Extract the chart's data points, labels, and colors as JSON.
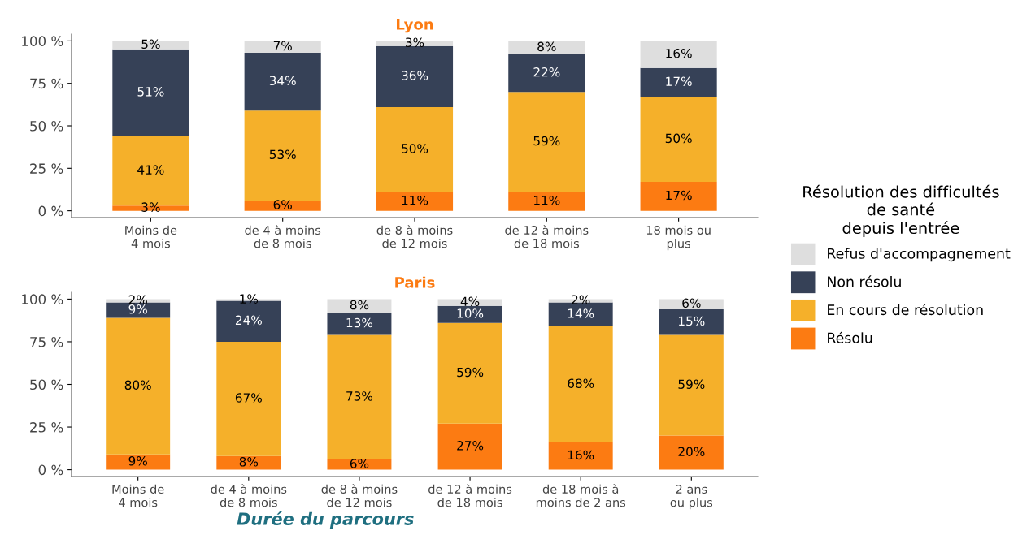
{
  "chart_data": [
    {
      "type": "bar",
      "stacked": true,
      "title": "Lyon",
      "legend": "right",
      "legend_title": "Résolution des difficultés\nde santé\ndepuis l'entrée",
      "categories": [
        "Moins de\n4 mois",
        "de 4 à moins\nde 8 mois",
        "de 8 à moins\nde 12 mois",
        "de 12 à moins\nde 18 mois",
        "18 mois ou\nplus"
      ],
      "ylim": [
        -4,
        104
      ],
      "yticks": [
        {
          "value": 0,
          "label": "0 %"
        },
        {
          "value": 25,
          "label": "25 %"
        },
        {
          "value": 50,
          "label": "50 %"
        },
        {
          "value": 75,
          "label": "75 %"
        },
        {
          "value": 100,
          "label": "100 %"
        }
      ],
      "grid": false,
      "series": [
        {
          "name": "Résolu",
          "color": "#fc7b12",
          "values": [
            3,
            6,
            11,
            11,
            17
          ],
          "value_labels": [
            "3%",
            "6%",
            "11%",
            "11%",
            "17%"
          ]
        },
        {
          "name": "En cours de résolution",
          "color": "#f5b02a",
          "values": [
            41,
            53,
            50,
            59,
            50
          ],
          "value_labels": [
            "41%",
            "53%",
            "50%",
            "59%",
            "50%"
          ]
        },
        {
          "name": "Non résolu",
          "color": "#364157",
          "values": [
            51,
            34,
            36,
            22,
            17
          ],
          "value_labels": [
            "51%",
            "34%",
            "36%",
            "22%",
            "17%"
          ]
        },
        {
          "name": "Refus d'accompagnement",
          "color": "#dedede",
          "values": [
            5,
            7,
            3,
            8,
            16
          ],
          "value_labels": [
            "5%",
            "7%",
            "3%",
            "8%",
            "16%"
          ]
        }
      ]
    },
    {
      "type": "bar",
      "stacked": true,
      "title": "Paris",
      "xlabel": "Durée du parcours",
      "categories": [
        "Moins de\n4 mois",
        "de 4 à moins\nde 8 mois",
        "de 8 à moins\nde 12 mois",
        "de 12 à moins\nde 18 mois",
        "de 18 mois à\nmoins de 2 ans",
        "2 ans\nou plus"
      ],
      "ylim": [
        -4,
        104
      ],
      "yticks": [
        {
          "value": 0,
          "label": "0 %"
        },
        {
          "value": 25,
          "label": "25 %"
        },
        {
          "value": 50,
          "label": "50 %"
        },
        {
          "value": 75,
          "label": "75 %"
        },
        {
          "value": 100,
          "label": "100 %"
        }
      ],
      "grid": false,
      "series": [
        {
          "name": "Résolu",
          "color": "#fc7b12",
          "values": [
            9,
            8,
            6,
            27,
            16,
            20
          ],
          "value_labels": [
            "9%",
            "8%",
            "6%",
            "27%",
            "16%",
            "20%"
          ]
        },
        {
          "name": "En cours de résolution",
          "color": "#f5b02a",
          "values": [
            80,
            67,
            73,
            59,
            68,
            59
          ],
          "value_labels": [
            "80%",
            "67%",
            "73%",
            "59%",
            "68%",
            "59%"
          ]
        },
        {
          "name": "Non résolu",
          "color": "#364157",
          "values": [
            9,
            24,
            13,
            10,
            14,
            15
          ],
          "value_labels": [
            "9%",
            "24%",
            "13%",
            "10%",
            "14%",
            "15%"
          ]
        },
        {
          "name": "Refus d'accompagnement",
          "color": "#dedede",
          "values": [
            2,
            1,
            8,
            4,
            2,
            6
          ],
          "value_labels": [
            "2%",
            "1%",
            "8%",
            "4%",
            "2%",
            "6%"
          ]
        }
      ]
    }
  ]
}
